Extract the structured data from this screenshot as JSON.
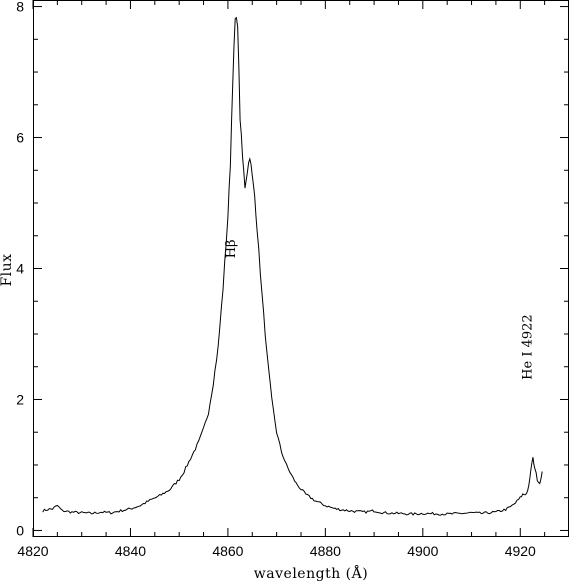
{
  "chart_data": {
    "type": "line",
    "title": "",
    "xlabel": "wavelength (Å)",
    "ylabel": "Flux",
    "xlim": [
      4820,
      4930
    ],
    "ylim": [
      -0.1,
      8.1
    ],
    "x_ticks": [
      4820,
      4840,
      4860,
      4880,
      4900,
      4920
    ],
    "y_ticks": [
      0,
      2,
      4,
      6,
      8
    ],
    "grid": false,
    "legend": "none",
    "series": [
      {
        "x": [
          4822,
          4823,
          4824,
          4825,
          4826,
          4828,
          4830,
          4832,
          4834,
          4836,
          4838,
          4840,
          4842,
          4844,
          4846,
          4848,
          4850,
          4851,
          4852,
          4853,
          4854,
          4855,
          4856,
          4857,
          4858,
          4859,
          4860,
          4860.5,
          4861,
          4861.5,
          4862,
          4862.5,
          4863,
          4863.5,
          4864,
          4864.5,
          4865,
          4865.5,
          4866,
          4867,
          4868,
          4869,
          4870,
          4871,
          4872,
          4873,
          4874,
          4875,
          4876,
          4877,
          4878,
          4880,
          4882,
          4885,
          4888,
          4890,
          4892,
          4895,
          4898,
          4900,
          4905,
          4908,
          4910,
          4912,
          4915,
          4917,
          4918,
          4919,
          4920,
          4920.5,
          4921,
          4921.5,
          4922,
          4922.3,
          4922.6,
          4923,
          4923.5,
          4924,
          4924.5
        ],
        "y": [
          0.3,
          0.32,
          0.33,
          0.38,
          0.3,
          0.28,
          0.27,
          0.26,
          0.28,
          0.27,
          0.3,
          0.33,
          0.38,
          0.46,
          0.53,
          0.62,
          0.78,
          0.9,
          1.05,
          1.2,
          1.35,
          1.55,
          1.8,
          2.25,
          2.8,
          3.7,
          4.8,
          5.6,
          6.9,
          7.8,
          7.75,
          6.3,
          5.7,
          5.25,
          5.5,
          5.72,
          5.4,
          5.1,
          4.6,
          3.6,
          2.7,
          2.0,
          1.5,
          1.2,
          1.0,
          0.85,
          0.72,
          0.63,
          0.55,
          0.5,
          0.45,
          0.38,
          0.33,
          0.3,
          0.28,
          0.3,
          0.27,
          0.26,
          0.25,
          0.26,
          0.25,
          0.26,
          0.27,
          0.26,
          0.28,
          0.32,
          0.36,
          0.42,
          0.5,
          0.55,
          0.55,
          0.6,
          0.8,
          1.0,
          1.1,
          0.95,
          0.78,
          0.72,
          0.9
        ]
      }
    ],
    "annotations": [
      {
        "text": "Hβ",
        "x": 4861.5,
        "y": 4.3,
        "rotation": -90
      },
      {
        "text": "He I 4922",
        "x": 4922.3,
        "y": 2.8,
        "rotation": -90
      }
    ]
  }
}
